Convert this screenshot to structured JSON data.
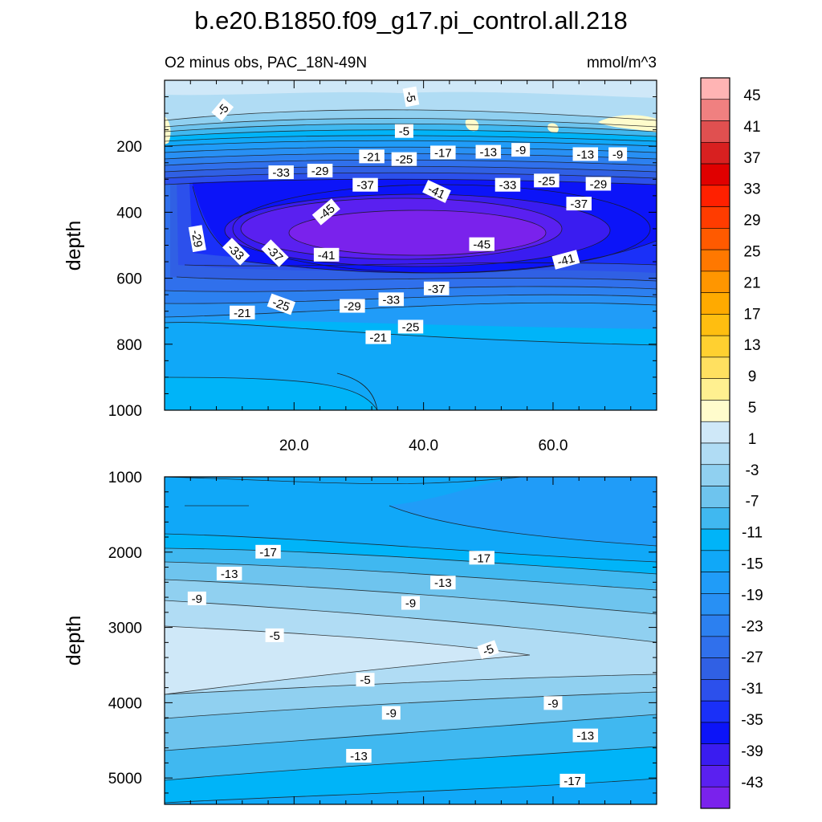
{
  "chart_data": [
    {
      "type": "heatmap",
      "title": "b.e20.B1850.f09_g17.pi_control.all.218",
      "subtitle_left": "O2 minus obs, PAC_18N-49N",
      "subtitle_right": "mmol/m^3",
      "ylabel": "depth",
      "xlim": [
        0,
        76
      ],
      "ylim": [
        1000,
        0
      ],
      "xticks": [
        "20.0",
        "40.0",
        "60.0"
      ],
      "xtick_values": [
        20,
        40,
        60
      ],
      "yticks": [
        "200",
        "400",
        "600",
        "800",
        "1000"
      ],
      "ytick_values": [
        200,
        400,
        600,
        800,
        1000
      ],
      "field_summary": {
        "surface_band": "-3 to 1 (light blue, pale yellow patches)",
        "minimum_core": "-45 near x=30-50, depth 420-520",
        "deep_values": "-15 to -19 at depth 800-1000"
      },
      "contour_labels": [
        {
          "text": "-5",
          "x": 9,
          "y": 90,
          "rot": -50
        },
        {
          "text": "-5",
          "x": 38,
          "y": 50,
          "rot": 80
        },
        {
          "text": "-5",
          "x": 37,
          "y": 155,
          "rot": 0
        },
        {
          "text": "-21",
          "x": 32,
          "y": 232,
          "rot": 0
        },
        {
          "text": "-25",
          "x": 37,
          "y": 240,
          "rot": 0
        },
        {
          "text": "-17",
          "x": 43,
          "y": 220,
          "rot": 0
        },
        {
          "text": "-13",
          "x": 50,
          "y": 218,
          "rot": 0
        },
        {
          "text": "-9",
          "x": 55,
          "y": 212,
          "rot": 0
        },
        {
          "text": "-13",
          "x": 65,
          "y": 225,
          "rot": 0
        },
        {
          "text": "-9",
          "x": 70,
          "y": 225,
          "rot": 0
        },
        {
          "text": "-33",
          "x": 18,
          "y": 280,
          "rot": 0
        },
        {
          "text": "-29",
          "x": 24,
          "y": 275,
          "rot": 0
        },
        {
          "text": "-37",
          "x": 31,
          "y": 318,
          "rot": 0
        },
        {
          "text": "-41",
          "x": 42,
          "y": 338,
          "rot": 25
        },
        {
          "text": "-33",
          "x": 53,
          "y": 318,
          "rot": 0
        },
        {
          "text": "-25",
          "x": 59,
          "y": 305,
          "rot": 0
        },
        {
          "text": "-29",
          "x": 67,
          "y": 315,
          "rot": 0
        },
        {
          "text": "-45",
          "x": 25,
          "y": 400,
          "rot": -40
        },
        {
          "text": "-37",
          "x": 64,
          "y": 375,
          "rot": 0
        },
        {
          "text": "-29",
          "x": 5,
          "y": 480,
          "rot": 80
        },
        {
          "text": "-33",
          "x": 11,
          "y": 520,
          "rot": 45
        },
        {
          "text": "-37",
          "x": 17,
          "y": 525,
          "rot": 45
        },
        {
          "text": "-41",
          "x": 25,
          "y": 530,
          "rot": 0
        },
        {
          "text": "-45",
          "x": 49,
          "y": 498,
          "rot": 0
        },
        {
          "text": "-41",
          "x": 62,
          "y": 545,
          "rot": -15
        },
        {
          "text": "-37",
          "x": 42,
          "y": 632,
          "rot": 0
        },
        {
          "text": "-33",
          "x": 35,
          "y": 665,
          "rot": 0
        },
        {
          "text": "-29",
          "x": 29,
          "y": 685,
          "rot": 0
        },
        {
          "text": "-25",
          "x": 18,
          "y": 680,
          "rot": 20
        },
        {
          "text": "-21",
          "x": 12,
          "y": 705,
          "rot": 0
        },
        {
          "text": "-25",
          "x": 38,
          "y": 748,
          "rot": 0
        },
        {
          "text": "-21",
          "x": 33,
          "y": 780,
          "rot": 0
        }
      ]
    },
    {
      "type": "heatmap",
      "ylabel": "depth",
      "xlim": [
        0,
        76
      ],
      "ylim": [
        5350,
        1000
      ],
      "yticks": [
        "1000",
        "2000",
        "3000",
        "4000",
        "5000"
      ],
      "ytick_values": [
        1000,
        2000,
        3000,
        4000,
        5000
      ],
      "field_summary": {
        "upper": "-19 to -15 at depth 1000-1800",
        "middle_maximum": "-5 to -3 at depth 3000-3800",
        "bottom": "-13 to -21 near 5000+"
      },
      "contour_labels": [
        {
          "text": "-17",
          "x": 16,
          "y": 2000,
          "rot": 0
        },
        {
          "text": "-17",
          "x": 49,
          "y": 2080,
          "rot": 0
        },
        {
          "text": "-13",
          "x": 10,
          "y": 2290,
          "rot": 0
        },
        {
          "text": "-13",
          "x": 43,
          "y": 2410,
          "rot": 0
        },
        {
          "text": "-9",
          "x": 5,
          "y": 2620,
          "rot": 0
        },
        {
          "text": "-9",
          "x": 38,
          "y": 2680,
          "rot": 0
        },
        {
          "text": "-5",
          "x": 17,
          "y": 3110,
          "rot": 0
        },
        {
          "text": "-5",
          "x": 50,
          "y": 3300,
          "rot": -20
        },
        {
          "text": "-5",
          "x": 31,
          "y": 3700,
          "rot": 0
        },
        {
          "text": "-9",
          "x": 35,
          "y": 4140,
          "rot": 0
        },
        {
          "text": "-9",
          "x": 60,
          "y": 4010,
          "rot": 0
        },
        {
          "text": "-13",
          "x": 30,
          "y": 4710,
          "rot": 0
        },
        {
          "text": "-13",
          "x": 65,
          "y": 4440,
          "rot": 0
        },
        {
          "text": "-17",
          "x": 63,
          "y": 5040,
          "rot": 0
        }
      ]
    },
    {
      "type": "colorbar",
      "labels": [
        "45",
        "41",
        "37",
        "33",
        "29",
        "25",
        "21",
        "17",
        "13",
        "9",
        "5",
        "1",
        "-3",
        "-7",
        "-11",
        "-15",
        "-19",
        "-23",
        "-27",
        "-31",
        "-35",
        "-39",
        "-43"
      ],
      "colors_top_to_bottom": [
        "#ffb4b4",
        "#f08080",
        "#e05050",
        "#d82020",
        "#e00000",
        "#ff2000",
        "#ff3c00",
        "#ff5a00",
        "#ff7800",
        "#ff9600",
        "#ffaa00",
        "#ffbe10",
        "#ffd030",
        "#ffe060",
        "#fff090",
        "#fffccc",
        "#cfe8f8",
        "#b0dcf4",
        "#90d0f0",
        "#6ec4ee",
        "#40b8f0",
        "#00b4f8",
        "#10a8f8",
        "#209cf8",
        "#2890f4",
        "#2c80f0",
        "#3070ec",
        "#3060e4",
        "#2c50ec",
        "#1a30f8",
        "#0c14f8",
        "#3a1cf0",
        "#5a20f0",
        "#7a22ec"
      ]
    }
  ]
}
